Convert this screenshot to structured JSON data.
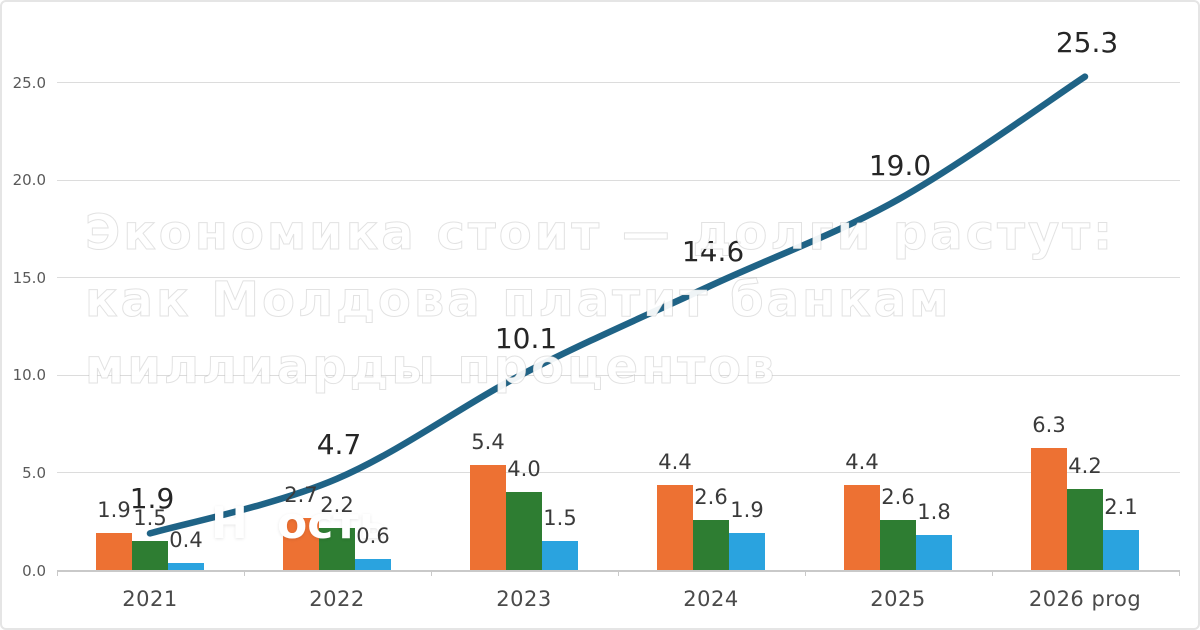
{
  "watermark": {
    "title_lines": [
      "Экономика стоит — долги растут:",
      "как Молдова платит банкам",
      "миллиарды процентов"
    ],
    "fragments": [
      {
        "text": "Н"
      },
      {
        "text": "ость"
      }
    ]
  },
  "chart_data": {
    "type": "combo",
    "subtype": "grouped-bar-with-line",
    "title": "",
    "categories": [
      "2021",
      "2022",
      "2023",
      "2024",
      "2025",
      "2026 prog"
    ],
    "bar_series": [
      {
        "name": "orange-bars",
        "color": "#ED7133",
        "values": [
          1.9,
          2.7,
          5.4,
          4.4,
          4.4,
          6.3
        ],
        "labels": [
          "1.9",
          "2.7",
          "5.4",
          "4.4",
          "4.4",
          "6.3"
        ]
      },
      {
        "name": "green-bars",
        "color": "#2E7D32",
        "values": [
          1.5,
          2.2,
          4.0,
          2.6,
          2.6,
          4.2
        ],
        "labels": [
          "1.5",
          "2.2",
          "4.0",
          "2.6",
          "2.6",
          "4.2"
        ]
      },
      {
        "name": "blue-bars",
        "color": "#2AA3DF",
        "values": [
          0.4,
          0.6,
          1.5,
          1.9,
          1.8,
          2.1
        ],
        "labels": [
          "0.4",
          "0.6",
          "1.5",
          "1.9",
          "1.8",
          "2.1"
        ]
      }
    ],
    "line_series": {
      "name": "line",
      "color": "#1F6386",
      "values": [
        1.9,
        4.7,
        10.1,
        14.6,
        19.0,
        25.3
      ],
      "labels": [
        "1.9",
        "4.7",
        "10.1",
        "14.6",
        "19.0",
        "25.3"
      ]
    },
    "y_axis": {
      "ticks": [
        "0.0",
        "5.0",
        "10.0",
        "15.0",
        "20.0",
        "25.0"
      ],
      "min": 0,
      "max": 25
    },
    "grid": true,
    "legend": "none",
    "grid_color": "#dcdcdc",
    "axis_label_color": "#595959"
  }
}
